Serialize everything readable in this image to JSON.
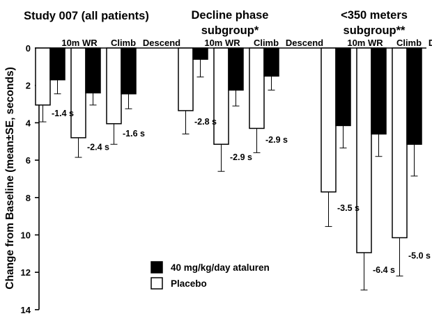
{
  "chart_data": {
    "type": "bar",
    "ylabel": "Change from Baseline (mean±SE, seconds)",
    "ylim": [
      0,
      14
    ],
    "yticks": [
      "0",
      "2",
      "4",
      "6",
      "8",
      "10",
      "12",
      "14"
    ],
    "y_inverted": true,
    "categories": [
      "10m WR",
      "Climb",
      "Descend"
    ],
    "legend": {
      "placement": "bottom-center",
      "entries": [
        {
          "name": "40 mg/kg/day ataluren",
          "color": "#000000"
        },
        {
          "name": "Placebo",
          "color": "#ffffff"
        }
      ]
    },
    "groups": [
      {
        "title_lines": [
          "Study 007 (all patients)"
        ],
        "series": [
          {
            "name": "Placebo",
            "values": [
              3.05,
              4.8,
              4.05
            ],
            "errors": [
              0.9,
              1.05,
              1.1
            ]
          },
          {
            "name": "40 mg/kg/day ataluren",
            "values": [
              1.7,
              2.4,
              2.45
            ],
            "errors": [
              0.75,
              0.65,
              0.8
            ]
          }
        ],
        "difference_labels": [
          "-1.4 s",
          "-2.4 s",
          "-1.6 s"
        ]
      },
      {
        "title_lines": [
          "Decline phase",
          "subgroup*"
        ],
        "series": [
          {
            "name": "Placebo",
            "values": [
              3.35,
              5.15,
              4.3
            ],
            "errors": [
              1.25,
              1.45,
              1.3
            ]
          },
          {
            "name": "40 mg/kg/day ataluren",
            "values": [
              0.6,
              2.25,
              1.5
            ],
            "errors": [
              0.95,
              0.85,
              0.75
            ]
          }
        ],
        "difference_labels": [
          "-2.8 s",
          "-2.9 s",
          "-2.9 s"
        ]
      },
      {
        "title_lines": [
          "<350 meters",
          "subgroup**"
        ],
        "series": [
          {
            "name": "Placebo",
            "values": [
              7.7,
              10.95,
              10.15
            ],
            "errors": [
              1.85,
              2.0,
              2.05
            ]
          },
          {
            "name": "40 mg/kg/day ataluren",
            "values": [
              4.15,
              4.6,
              5.15
            ],
            "errors": [
              1.2,
              1.2,
              1.7
            ]
          }
        ],
        "difference_labels": [
          "-3.5 s",
          "-6.4 s",
          "-5.0 s"
        ]
      }
    ]
  }
}
